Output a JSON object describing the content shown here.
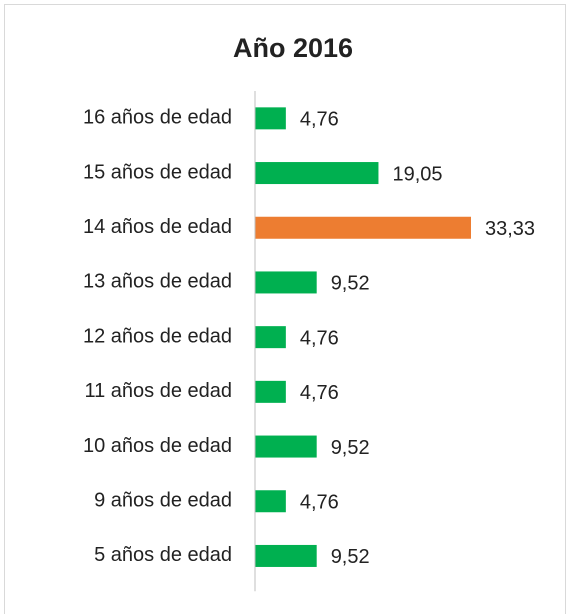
{
  "chart_data": {
    "type": "bar",
    "orientation": "horizontal",
    "title": "Año 2016",
    "categories": [
      "16 años de edad",
      "15 años de edad",
      "14 años de edad",
      "13 años de edad",
      "12 años de edad",
      "11 años de edad",
      "10 años de edad",
      "9 años de edad",
      "5 años de edad"
    ],
    "values": [
      4.76,
      19.05,
      33.33,
      9.52,
      4.76,
      4.76,
      9.52,
      4.76,
      9.52
    ],
    "value_labels": [
      "4,76",
      "19,05",
      "33,33",
      "9,52",
      "4,76",
      "4,76",
      "9,52",
      "4,76",
      "9,52"
    ],
    "colors": [
      "#00b050",
      "#00b050",
      "#ed7d31",
      "#00b050",
      "#00b050",
      "#00b050",
      "#00b050",
      "#00b050",
      "#00b050"
    ]
  }
}
